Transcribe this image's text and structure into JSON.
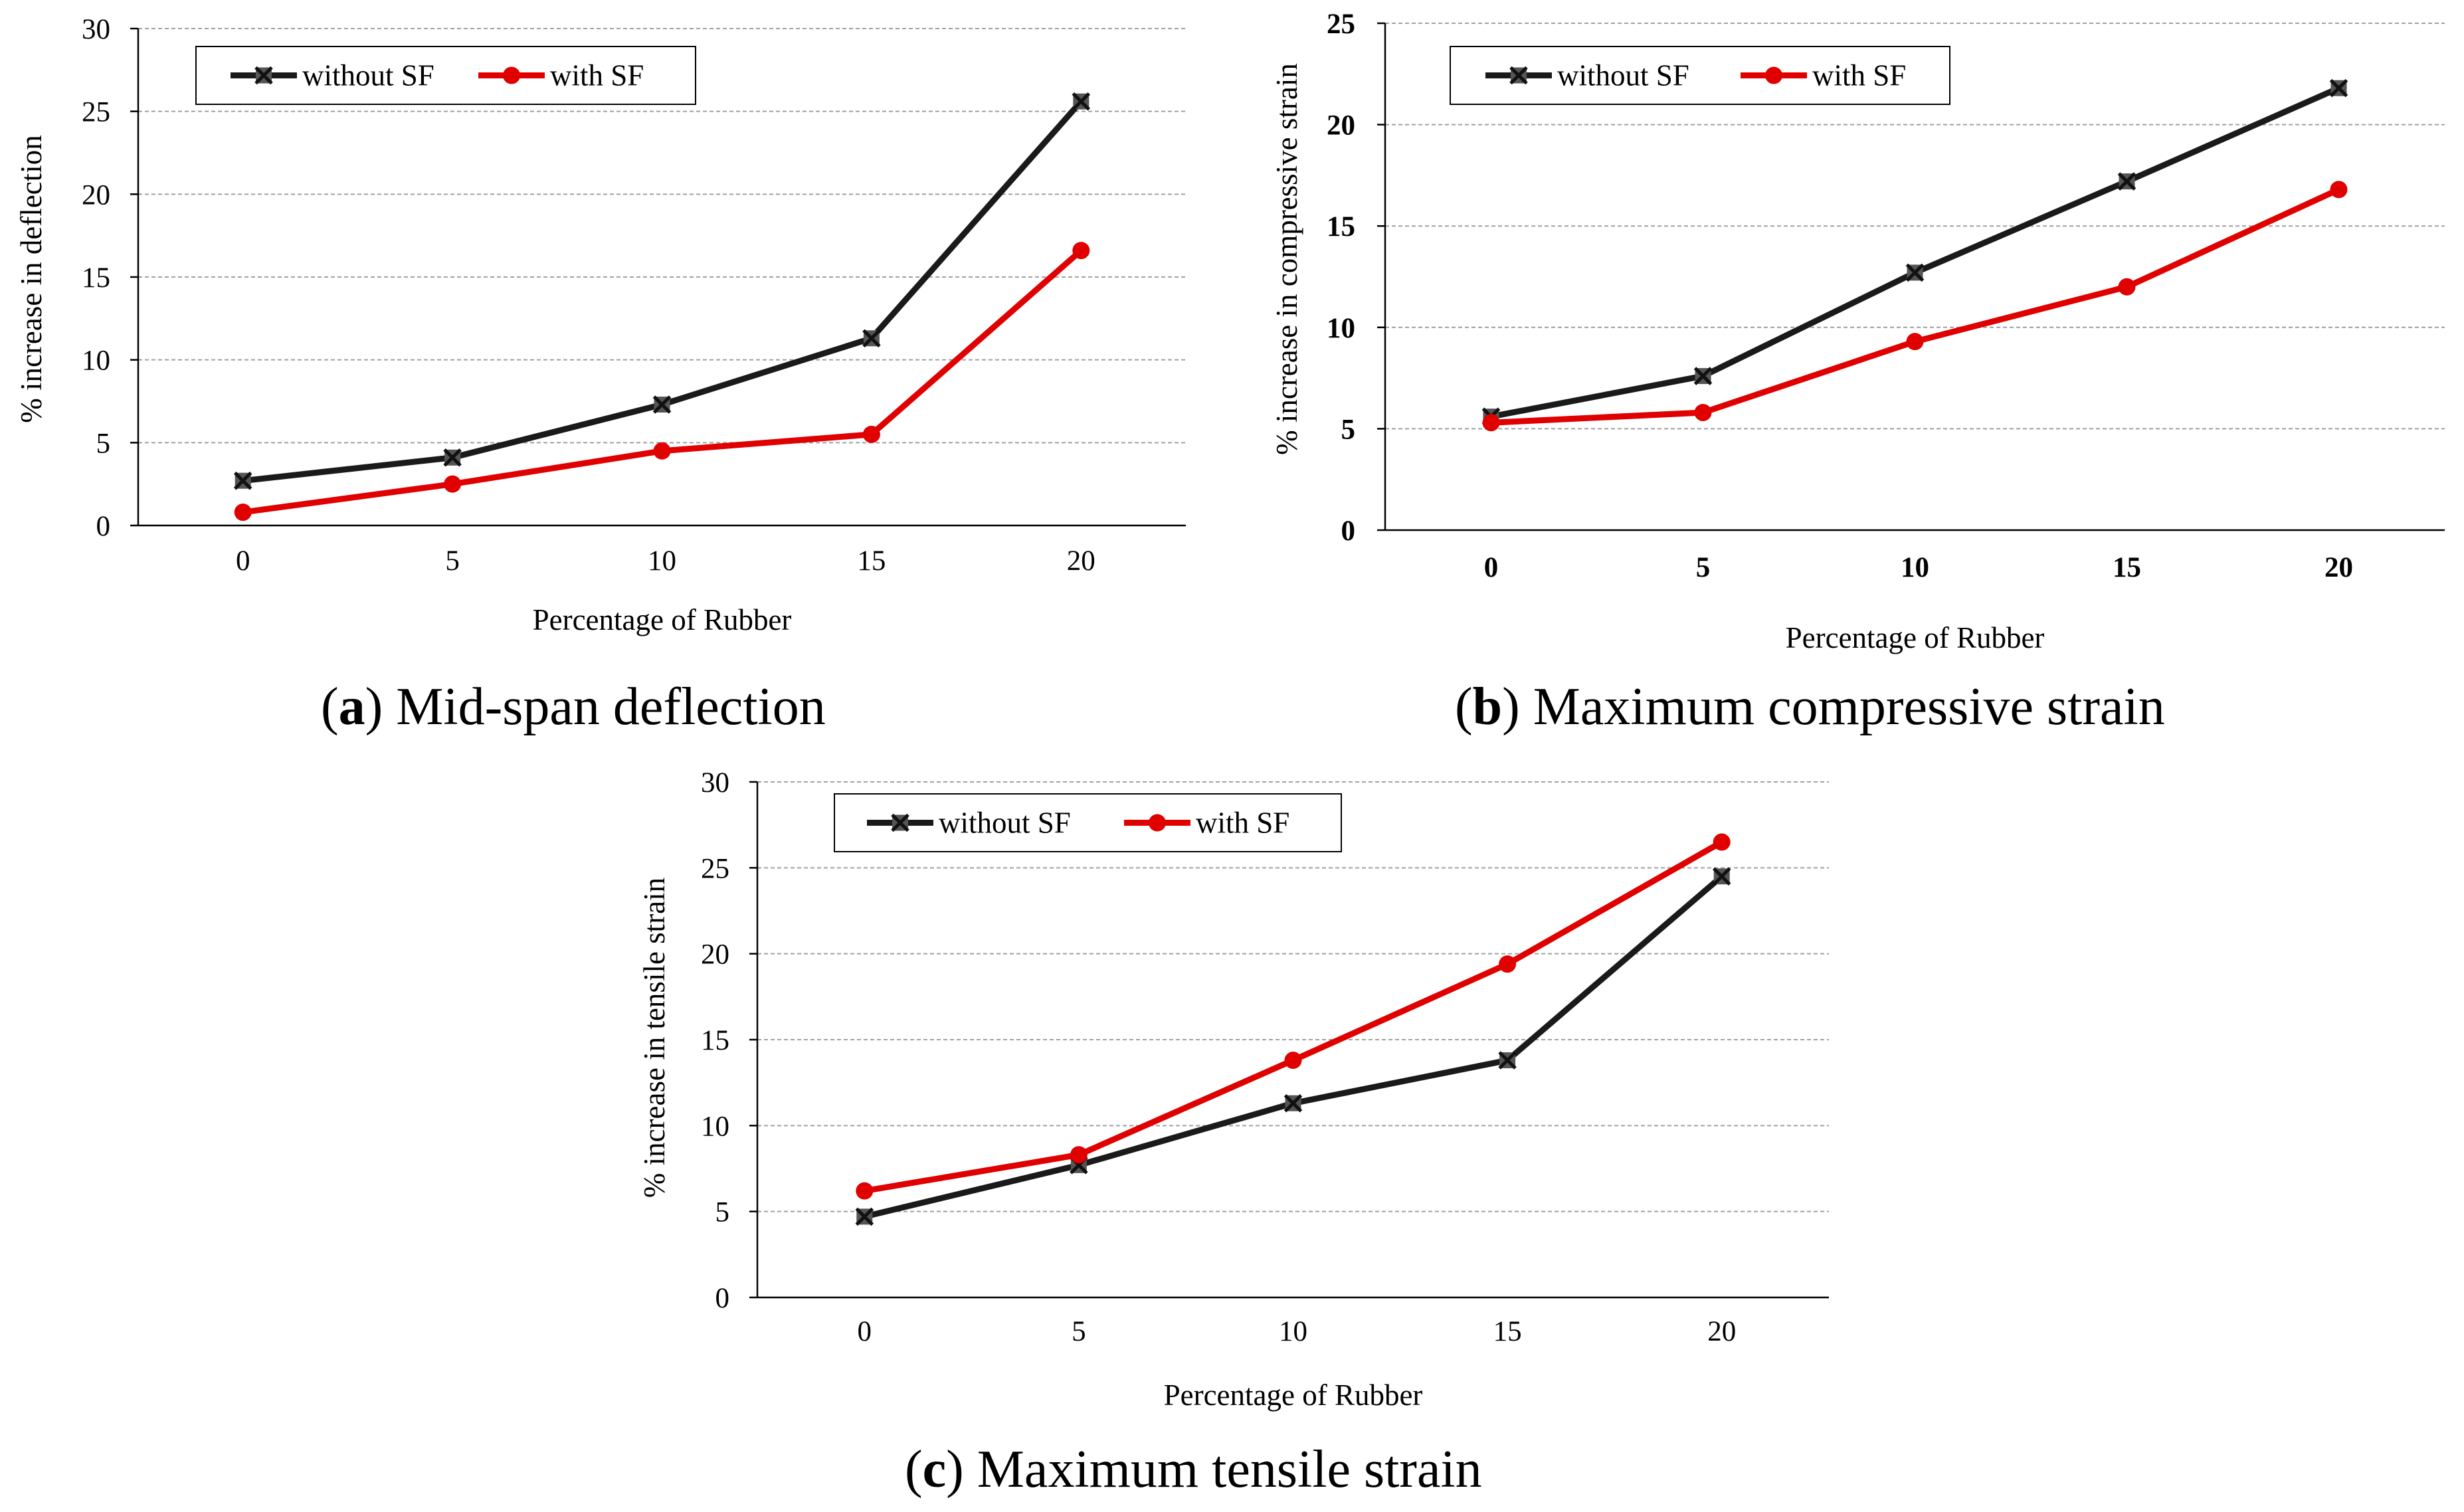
{
  "figure": {
    "captions": [
      {
        "letter": "a",
        "text": "Mid-span deflection"
      },
      {
        "letter": "b",
        "text": "Maximum compressive strain"
      },
      {
        "letter": "c",
        "text": "Maximum tensile strain"
      }
    ]
  },
  "colors": {
    "without_sf": "#1a1a1a",
    "with_sf": "#e00000",
    "grid": "#a0a0a0",
    "axis": "#000000"
  },
  "chart_data": [
    {
      "id": "a",
      "type": "line",
      "title": "Mid-span deflection",
      "xlabel": "Percentage of Rubber",
      "ylabel": "% increase in deflection",
      "categories": [
        "0",
        "5",
        "10",
        "15",
        "20"
      ],
      "ylim": [
        0,
        30
      ],
      "yticks": [
        0,
        5,
        10,
        15,
        20,
        25,
        30
      ],
      "grid": true,
      "legend": "top-left",
      "bold_ticks": false,
      "series": [
        {
          "name": "without SF",
          "marker": "x",
          "values": [
            2.7,
            4.1,
            7.3,
            11.3,
            25.6
          ]
        },
        {
          "name": "with SF",
          "marker": "circle",
          "values": [
            0.8,
            2.5,
            4.5,
            5.5,
            16.6
          ]
        }
      ]
    },
    {
      "id": "b",
      "type": "line",
      "title": "Maximum compressive strain",
      "xlabel": "Percentage of Rubber",
      "ylabel": "% increase in compressive strain",
      "categories": [
        "0",
        "5",
        "10",
        "15",
        "20"
      ],
      "ylim": [
        0,
        25
      ],
      "yticks": [
        0,
        5,
        10,
        15,
        20,
        25
      ],
      "grid": true,
      "legend": "top-left",
      "bold_ticks": true,
      "series": [
        {
          "name": "without SF",
          "marker": "x",
          "values": [
            5.6,
            7.6,
            12.7,
            17.2,
            21.8
          ]
        },
        {
          "name": "with SF",
          "marker": "circle",
          "values": [
            5.3,
            5.8,
            9.3,
            12.0,
            16.8
          ]
        }
      ]
    },
    {
      "id": "c",
      "type": "line",
      "title": "Maximum tensile strain",
      "xlabel": "Percentage of Rubber",
      "ylabel": "% increase in tensile strain",
      "categories": [
        "0",
        "5",
        "10",
        "15",
        "20"
      ],
      "ylim": [
        0,
        30
      ],
      "yticks": [
        0,
        5,
        10,
        15,
        20,
        25,
        30
      ],
      "grid": true,
      "legend": "top-center",
      "bold_ticks": false,
      "series": [
        {
          "name": "without SF",
          "marker": "x",
          "values": [
            4.7,
            7.7,
            11.3,
            13.8,
            24.5
          ]
        },
        {
          "name": "with SF",
          "marker": "circle",
          "values": [
            6.2,
            8.3,
            13.8,
            19.4,
            26.5
          ]
        }
      ]
    }
  ]
}
